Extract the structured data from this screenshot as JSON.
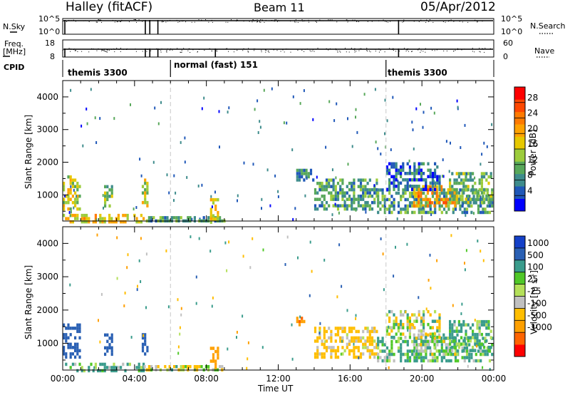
{
  "header": {
    "station": "Halley (fitACF)",
    "beam": "Beam 11",
    "date": "05/Apr/2012"
  },
  "colors": {
    "power_scale": [
      "#0000ff",
      "#1f57b8",
      "#3e8c8c",
      "#58a85a",
      "#9ccc3c",
      "#e6c800",
      "#ffa200",
      "#ff7a00",
      "#ff4800",
      "#ff0000"
    ],
    "velocity_scale": [
      "#ff0000",
      "#ff6400",
      "#ffa000",
      "#ffbe00",
      "#c0c0c0",
      "#b4e05a",
      "#50c828",
      "#3a9c8c",
      "#2a60b4",
      "#1440c8"
    ]
  },
  "chart_data": [
    {
      "type": "line",
      "name": "nsky-nsearch",
      "left_label": "N.Sky",
      "right_label": "N.Search",
      "left_ticks": [
        "10^5",
        "10^0"
      ],
      "right_ticks": [
        "10^5",
        "10^0"
      ],
      "ylim": [
        0,
        5
      ],
      "scale": "log",
      "gap_times_hr": [
        4.6,
        4.85,
        5.3,
        18.7
      ]
    },
    {
      "type": "line",
      "name": "freq-nave",
      "left_label": "Freq.",
      "left_unit": "[MHz]",
      "right_label": "Nave",
      "left_ticks": [
        "18",
        "8"
      ],
      "right_ticks": [
        "60",
        "0"
      ],
      "ylim_left": [
        8,
        18
      ],
      "ylim_right": [
        0,
        60
      ],
      "gap_times_hr": [
        4.6,
        4.85,
        5.3,
        8.5,
        18.7
      ]
    },
    {
      "type": "table",
      "name": "cpid",
      "label": "CPID",
      "segments": [
        {
          "start_hr": 0,
          "end_hr": 6,
          "label": "themis 3300"
        },
        {
          "start_hr": 6,
          "end_hr": 18,
          "label": "normal (fast) 151"
        },
        {
          "start_hr": 18,
          "end_hr": 24,
          "label": "themis 3300"
        }
      ]
    },
    {
      "type": "heatmap",
      "name": "power",
      "ylabel": "Slant Range [km]",
      "yticks": [
        "1000",
        "2000",
        "3000",
        "4000"
      ],
      "ylim": [
        200,
        4500
      ],
      "xlim": [
        0,
        24
      ],
      "colorbar_label": "Power [dB]",
      "colorbar_ticks": [
        "4",
        "8",
        "12",
        "16",
        "20",
        "24",
        "28"
      ],
      "colorbar_range": [
        0,
        32
      ],
      "patches": [
        {
          "t0": 0.0,
          "t1": 1.0,
          "r0": 600,
          "r1": 1600,
          "v": 16
        },
        {
          "t0": 0.0,
          "t1": 4.5,
          "r0": 200,
          "r1": 420,
          "v": 18
        },
        {
          "t0": 2.3,
          "t1": 2.7,
          "r0": 700,
          "r1": 1300,
          "v": 14
        },
        {
          "t0": 4.4,
          "t1": 4.7,
          "r0": 700,
          "r1": 1500,
          "v": 16
        },
        {
          "t0": 4.5,
          "t1": 9.0,
          "r0": 200,
          "r1": 350,
          "v": 10
        },
        {
          "t0": 8.2,
          "t1": 8.7,
          "r0": 200,
          "r1": 900,
          "v": 18
        },
        {
          "t0": 13.0,
          "t1": 14.0,
          "r0": 1500,
          "r1": 1800,
          "v": 8
        },
        {
          "t0": 14.0,
          "t1": 17.5,
          "r0": 600,
          "r1": 1500,
          "v": 10
        },
        {
          "t0": 17.5,
          "t1": 23.9,
          "r0": 500,
          "r1": 1200,
          "v": 10
        },
        {
          "t0": 19.5,
          "t1": 22.0,
          "r0": 700,
          "r1": 1300,
          "v": 22
        },
        {
          "t0": 21.5,
          "t1": 23.9,
          "r0": 800,
          "r1": 1700,
          "v": 12
        },
        {
          "t0": 18.0,
          "t1": 21.0,
          "r0": 1200,
          "r1": 2000,
          "v": 6
        }
      ],
      "speckle": {
        "t0": 0,
        "t1": 24,
        "r0": 250,
        "r1": 4300,
        "count": 160
      }
    },
    {
      "type": "heatmap",
      "name": "velocity",
      "ylabel": "Slant Range [km]",
      "yticks": [
        "1000",
        "2000",
        "3000",
        "4000"
      ],
      "ylim": [
        200,
        4500
      ],
      "xlim": [
        0,
        24
      ],
      "xlabel": "Time UT",
      "xticks": [
        "00:00",
        "04:00",
        "08:00",
        "12:00",
        "16:00",
        "20:00",
        "00:00"
      ],
      "colorbar_label": "Velocity [m s^-1]",
      "colorbar_ticks": [
        "-1000",
        "-500",
        "-100",
        "-25",
        "25",
        "100",
        "500",
        "1000"
      ],
      "patches": [
        {
          "t0": 0.0,
          "t1": 1.0,
          "r0": 600,
          "r1": 1600,
          "v": 800
        },
        {
          "t0": 0.0,
          "t1": 4.5,
          "r0": 200,
          "r1": 420,
          "v": 150
        },
        {
          "t0": 2.3,
          "t1": 2.7,
          "r0": 700,
          "r1": 1300,
          "v": 700
        },
        {
          "t0": 4.4,
          "t1": 4.7,
          "r0": 700,
          "r1": 1500,
          "v": 700
        },
        {
          "t0": 4.5,
          "t1": 9.0,
          "r0": 200,
          "r1": 350,
          "v": -80
        },
        {
          "t0": 8.2,
          "t1": 8.7,
          "r0": 200,
          "r1": 900,
          "v": -800
        },
        {
          "t0": 13.0,
          "t1": 13.5,
          "r0": 1550,
          "r1": 1800,
          "v": -900
        },
        {
          "t0": 14.0,
          "t1": 17.5,
          "r0": 600,
          "r1": 1500,
          "v": -200
        },
        {
          "t0": 17.5,
          "t1": 23.9,
          "r0": 500,
          "r1": 1200,
          "v": 120
        },
        {
          "t0": 19.5,
          "t1": 22.0,
          "r0": 700,
          "r1": 1300,
          "v": 60
        },
        {
          "t0": 21.5,
          "t1": 23.9,
          "r0": 800,
          "r1": 1700,
          "v": 150
        },
        {
          "t0": 18.0,
          "t1": 21.0,
          "r0": 1200,
          "r1": 2000,
          "v": 10
        }
      ],
      "speckle": {
        "t0": 0,
        "t1": 24,
        "r0": 250,
        "r1": 4300,
        "count": 110
      }
    }
  ]
}
